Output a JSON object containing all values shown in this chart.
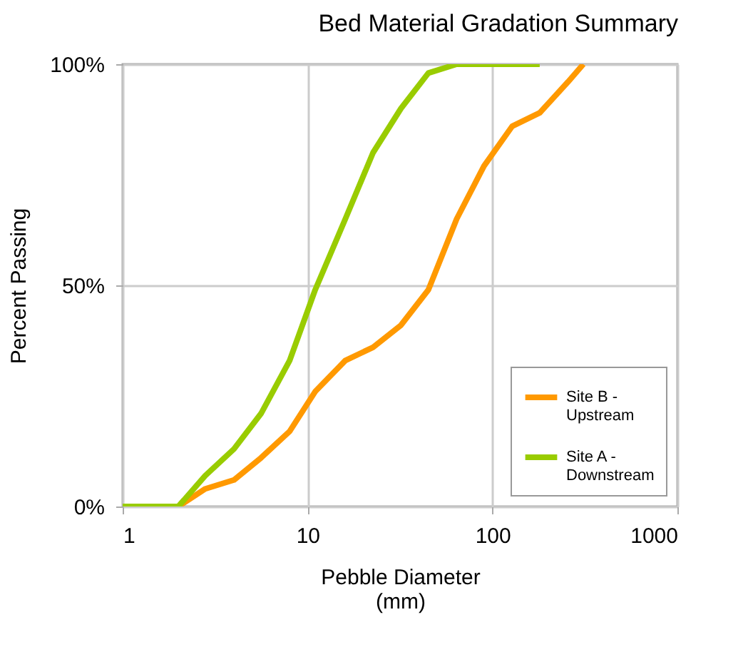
{
  "chart_data": {
    "type": "line",
    "title": "Bed Material Gradation Summary",
    "xlabel": "Pebble Diameter (mm)",
    "ylabel": "Percent Passing",
    "log": "x",
    "xlim": [
      1,
      1000
    ],
    "xticks": [
      1,
      10,
      100,
      1000
    ],
    "ylim": [
      0,
      100
    ],
    "yticks": [
      {
        "value": 0,
        "label": "0%"
      },
      {
        "value": 50,
        "label": "50%"
      },
      {
        "value": 100,
        "label": "100%"
      }
    ],
    "grid": true,
    "legend": "bottom right",
    "series": [
      {
        "name": "Site B - Upstream",
        "color": "#ff9900",
        "x": [
          1,
          2,
          2.8,
          4,
          5.6,
          8,
          11,
          16,
          22.6,
          32,
          45,
          64,
          90,
          128,
          180,
          256,
          310
        ],
        "values": [
          0,
          0,
          4,
          6,
          11,
          17,
          26,
          33,
          36,
          41,
          49,
          65,
          77,
          86,
          89,
          96,
          100
        ]
      },
      {
        "name": "Site A - Downstream",
        "color": "#99cc00",
        "x": [
          1,
          2,
          2.8,
          4,
          5.6,
          8,
          11,
          16,
          22.6,
          32,
          45,
          64,
          90,
          128,
          180
        ],
        "values": [
          0,
          0,
          7,
          13,
          21,
          33,
          49,
          65,
          80,
          90,
          98,
          100,
          100,
          100,
          100
        ]
      }
    ]
  }
}
